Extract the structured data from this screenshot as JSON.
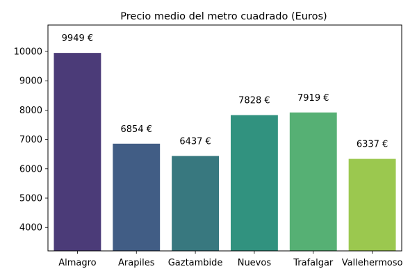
{
  "chart_data": {
    "type": "bar",
    "title": "Precio medio del metro cuadrado (Euros)",
    "xlabel": "",
    "ylabel": "",
    "categories": [
      "Almagro",
      "Arapiles",
      "Gaztambide",
      "Nuevos",
      "Trafalgar",
      "Vallehermoso"
    ],
    "values": [
      9949,
      6854,
      6437,
      7828,
      7919,
      6337
    ],
    "data_labels": [
      "9949 €",
      "6854 €",
      "6437 €",
      "7828 €",
      "7919 €",
      "6337 €"
    ],
    "colors": [
      "#4b3b78",
      "#415d85",
      "#38787f",
      "#31927f",
      "#56b074",
      "#9bc84f"
    ],
    "ylim": [
      3200,
      10900
    ],
    "yticks": [
      4000,
      5000,
      6000,
      7000,
      8000,
      9000,
      10000
    ],
    "grid": false,
    "legend": "none"
  }
}
